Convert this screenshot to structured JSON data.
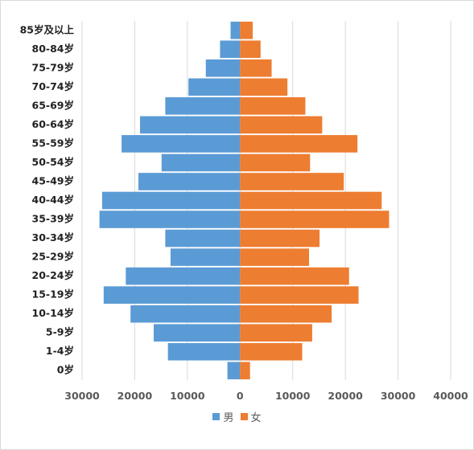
{
  "colors": {
    "male": "#5b9bd5",
    "female": "#ed7d31",
    "grid": "#d9d9d9"
  },
  "chart_data": {
    "type": "bar",
    "orientation": "horizontal",
    "title": "",
    "xlabel": "",
    "ylabel": "",
    "categories": [
      "85岁及以上",
      "80-84岁",
      "75-79岁",
      "70-74岁",
      "65-69岁",
      "60-64岁",
      "55-59岁",
      "50-54岁",
      "45-49岁",
      "40-44岁",
      "35-39岁",
      "30-34岁",
      "25-29岁",
      "20-24岁",
      "15-19岁",
      "10-14岁",
      "5-9岁",
      "1-4岁",
      "0岁"
    ],
    "series": [
      {
        "name": "男",
        "values": [
          -1800,
          -3800,
          -6500,
          -9800,
          -14200,
          -19000,
          -22500,
          -14900,
          -19300,
          -26200,
          -26700,
          -14200,
          -13200,
          -21700,
          -25900,
          -20800,
          -16400,
          -13700,
          -2400
        ]
      },
      {
        "name": "女",
        "values": [
          2400,
          3900,
          6000,
          9000,
          12400,
          15600,
          22300,
          13300,
          19700,
          26900,
          28300,
          15100,
          13100,
          20700,
          22500,
          17400,
          13700,
          11800,
          1900
        ]
      }
    ],
    "xlim": [
      -30000,
      40000
    ],
    "xticks": [
      -30000,
      -20000,
      -10000,
      0,
      10000,
      20000,
      30000,
      40000
    ],
    "xtick_labels": [
      "30000",
      "20000",
      "10000",
      "0",
      "10000",
      "20000",
      "30000",
      "40000"
    ],
    "grid": true,
    "legend_position": "bottom"
  }
}
